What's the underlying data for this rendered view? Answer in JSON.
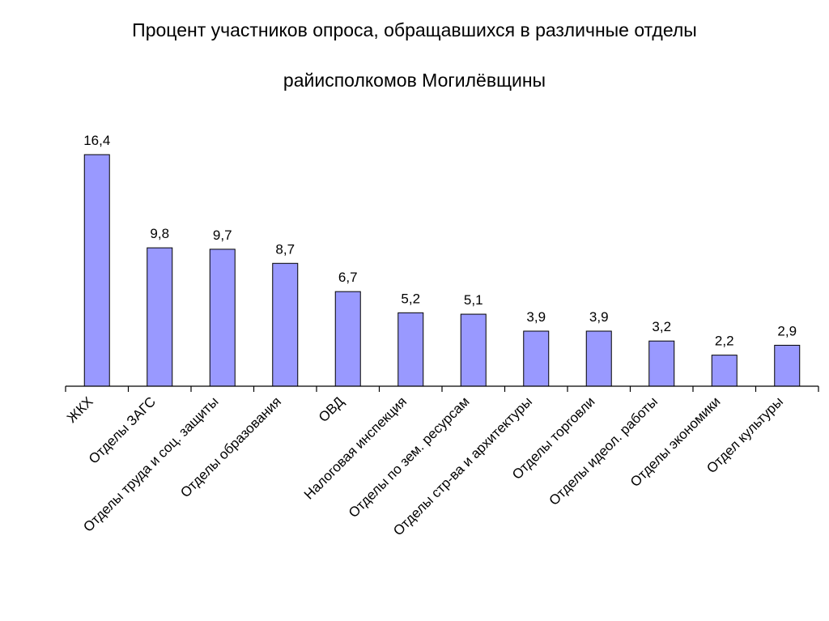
{
  "chart_data": {
    "type": "bar",
    "title_line1": "Процент участников опроса, обращавшихся в различные отделы",
    "title_line2": "райисполкомов Могилёвщины",
    "xlabel": "",
    "ylabel": "",
    "ylim": [
      0,
      16.4
    ],
    "grid": false,
    "legend": "none",
    "bar_color": "#9999ff",
    "categories": [
      "ЖКХ",
      "Отделы ЗАГС",
      "Отделы труда и соц. защиты",
      "Отделы образования",
      "ОВД",
      "Налоговая инспекция",
      "Отделы по зем. ресурсам",
      "Отделы стр-ва и архитектуры",
      "Отделы торговли",
      "Отделы идеол. работы",
      "Отделы экономики",
      "Отдел культуры"
    ],
    "values": [
      16.4,
      9.8,
      9.7,
      8.7,
      6.7,
      5.2,
      5.1,
      3.9,
      3.9,
      3.2,
      2.2,
      2.9
    ],
    "data_labels": [
      "16,4",
      "9,8",
      "9,7",
      "8,7",
      "6,7",
      "5,2",
      "5,1",
      "3,9",
      "3,9",
      "3,2",
      "2,2",
      "2,9"
    ]
  }
}
